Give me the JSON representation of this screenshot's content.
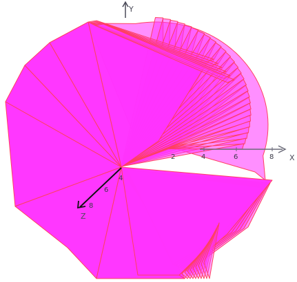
{
  "scene": {
    "surface_color": "#ff33ff",
    "surface_edge_color": "#ff4060",
    "axis_color": "#6a6a78",
    "z_axis_color": "#111111",
    "background": "#ffffff"
  },
  "axes": {
    "x": {
      "label": "X",
      "ticks": [
        "2",
        "4",
        "6",
        "8"
      ]
    },
    "y": {
      "label": "Y"
    },
    "z": {
      "label": "Z",
      "ticks": [
        "4",
        "6",
        "8"
      ]
    }
  }
}
